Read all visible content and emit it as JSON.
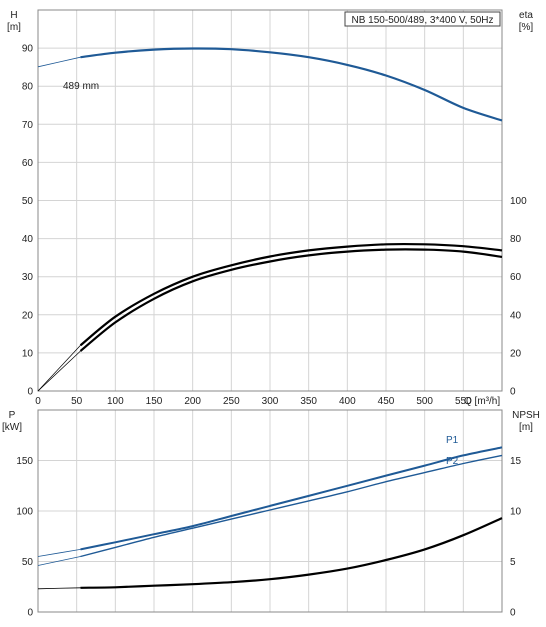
{
  "chart_data": [
    {
      "type": "line",
      "title": "NB 150-500/489, 3*400 V, 50Hz",
      "left_axis_label": [
        "H",
        "[m]"
      ],
      "right_axis_label": [
        "eta",
        "[%]"
      ],
      "x_axis_label": "Q [m³/h]",
      "xlim": [
        0,
        600
      ],
      "x_ticks": [
        "0",
        "50",
        "100",
        "150",
        "200",
        "250",
        "300",
        "350",
        "400",
        "450",
        "500",
        "550"
      ],
      "left_ylim": [
        0,
        100
      ],
      "left_ticks": [
        "0",
        "10",
        "20",
        "30",
        "40",
        "50",
        "60",
        "70",
        "80",
        "90"
      ],
      "right_ylim": [
        0,
        100
      ],
      "right_ticks": [
        "0",
        "20",
        "40",
        "60",
        "80",
        "100"
      ],
      "grid": true,
      "annotation": "489 mm",
      "series": [
        {
          "name": "489 mm",
          "axis": "left",
          "color": "#1f5a96",
          "x": [
            0,
            55,
            100,
            150,
            200,
            250,
            300,
            350,
            400,
            450,
            500,
            550,
            600
          ],
          "y": [
            85.1,
            87.6,
            88.8,
            89.6,
            89.9,
            89.7,
            88.9,
            87.6,
            85.6,
            82.8,
            79.0,
            74.3,
            71.0
          ]
        },
        {
          "axis": "left",
          "color": "#000000",
          "x": [
            55,
            100,
            150,
            200,
            250,
            300,
            350,
            400,
            450,
            500,
            550,
            600
          ],
          "y": [
            12.0,
            19.5,
            25.5,
            30.0,
            33.0,
            35.3,
            36.9,
            37.9,
            38.5,
            38.5,
            38.0,
            36.9
          ]
        },
        {
          "axis": "left",
          "color": "#000000",
          "x": [
            55,
            100,
            150,
            200,
            250,
            300,
            350,
            400,
            450,
            500,
            550,
            600
          ],
          "y": [
            10.5,
            18.0,
            24.2,
            28.8,
            31.8,
            34.0,
            35.6,
            36.6,
            37.1,
            37.1,
            36.6,
            35.2
          ]
        }
      ]
    },
    {
      "type": "line",
      "left_axis_label": [
        "P",
        "[kW]"
      ],
      "right_axis_label": [
        "NPSH",
        "[m]"
      ],
      "xlim": [
        0,
        600
      ],
      "left_ylim": [
        0,
        200
      ],
      "left_ticks": [
        "0",
        "50",
        "100",
        "150"
      ],
      "right_ylim": [
        0,
        20
      ],
      "right_ticks": [
        "0",
        "5",
        "10",
        "15"
      ],
      "grid": true,
      "series": [
        {
          "name": "P1",
          "axis": "left",
          "color": "#1f5a96",
          "x": [
            0,
            55,
            100,
            150,
            200,
            250,
            300,
            350,
            400,
            450,
            500,
            550,
            600
          ],
          "y": [
            55,
            62,
            69,
            77,
            85,
            95,
            105,
            115,
            125,
            135,
            145,
            155,
            163
          ]
        },
        {
          "name": "P2",
          "axis": "left",
          "color": "#1f5a96",
          "x": [
            0,
            55,
            100,
            150,
            200,
            250,
            300,
            350,
            400,
            450,
            500,
            550,
            600
          ],
          "y": [
            46,
            55,
            64,
            74,
            83,
            92,
            101,
            110,
            119,
            129,
            138,
            147,
            155
          ]
        },
        {
          "axis": "right",
          "color": "#000000",
          "x": [
            0,
            55,
            100,
            150,
            200,
            250,
            300,
            350,
            400,
            450,
            500,
            550,
            600
          ],
          "y": [
            2.3,
            2.4,
            2.45,
            2.6,
            2.75,
            2.95,
            3.25,
            3.7,
            4.3,
            5.15,
            6.2,
            7.6,
            9.3
          ]
        }
      ]
    }
  ]
}
